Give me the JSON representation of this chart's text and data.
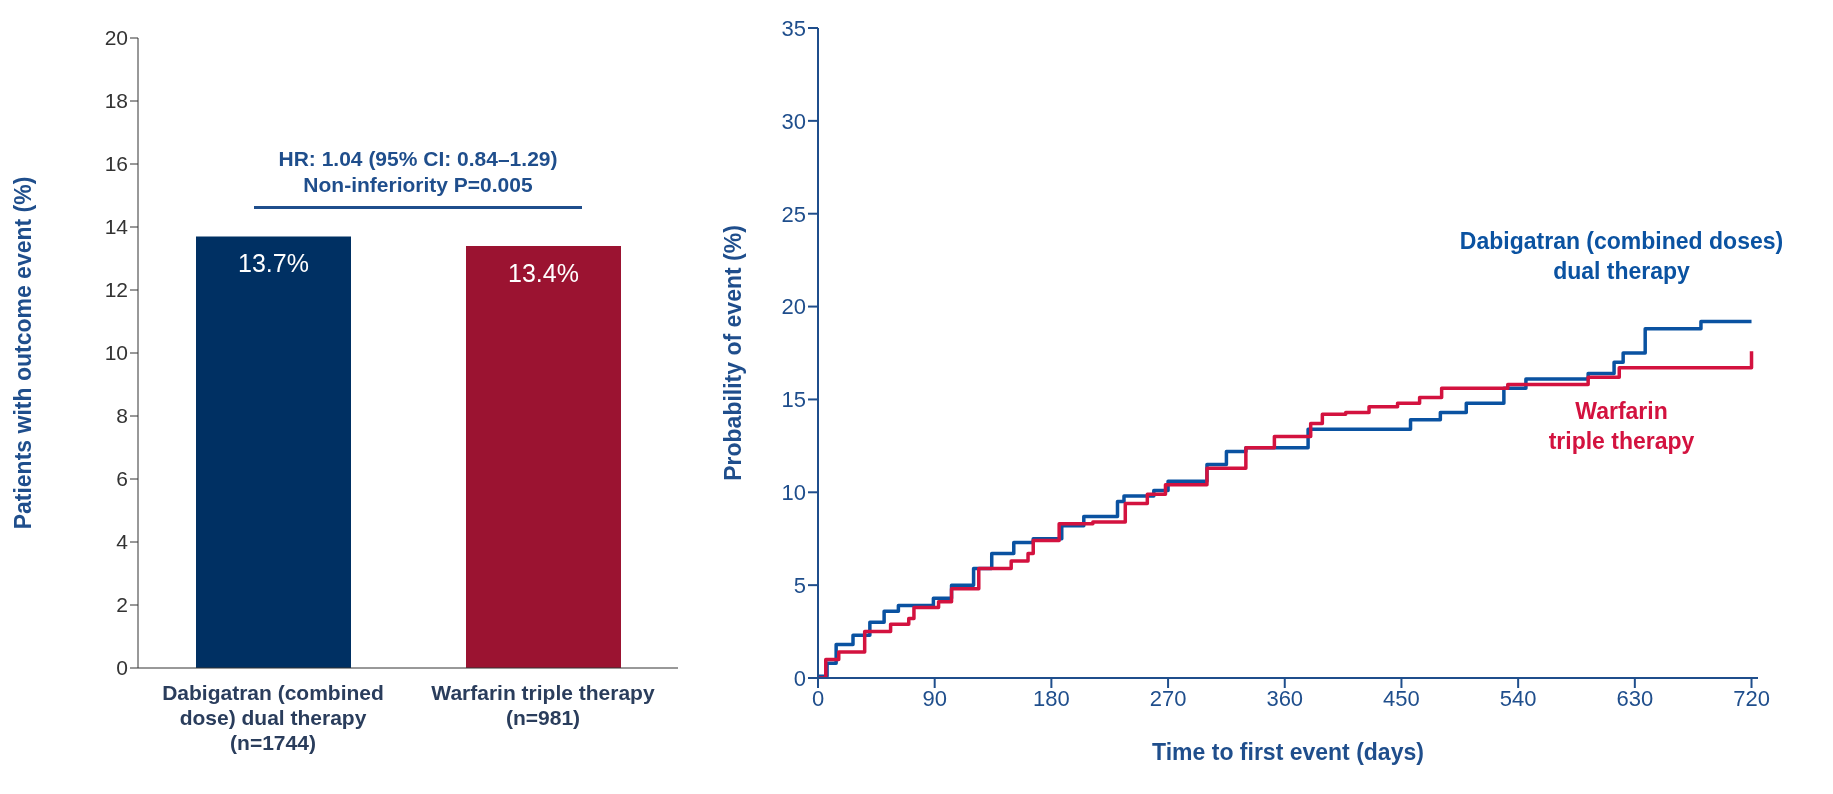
{
  "chart_data": [
    {
      "type": "bar",
      "categories": [
        "Dabigatran (combined dose) dual therapy (n=1744)",
        "Warfarin triple therapy (n=981)"
      ],
      "values": [
        13.7,
        13.4
      ],
      "colors": [
        "#003063",
        "#9b1331"
      ],
      "value_labels": [
        "13.7%",
        "13.4%"
      ],
      "ylabel": "Patients with outcome event (%)",
      "ylim": [
        0,
        20
      ],
      "yticks": [
        0,
        2,
        4,
        6,
        8,
        10,
        12,
        14,
        16,
        18,
        20
      ],
      "annotations": [
        "HR: 1.04 (95% CI: 0.84–1.29)\nNon-inferiority P=0.005"
      ],
      "grid": false,
      "legend": false
    },
    {
      "type": "step",
      "xlabel": "Time to first event (days)",
      "ylabel": "Probability of event (%)",
      "xlim": [
        0,
        725
      ],
      "xticks": [
        0,
        90,
        180,
        270,
        360,
        450,
        540,
        630,
        720
      ],
      "ylim": [
        0,
        35
      ],
      "yticks": [
        0,
        5,
        10,
        15,
        20,
        25,
        30,
        35
      ],
      "grid": false,
      "legend": false,
      "marker": "none",
      "line_style": "solid",
      "series": [
        {
          "name": "Dabigatran (combined doses)\ndual therapy",
          "color": "#0a52a1",
          "x": [
            0,
            7,
            14,
            27,
            40,
            51,
            62,
            89,
            103,
            120,
            134,
            151,
            166,
            188,
            205,
            231,
            236,
            259,
            270,
            300,
            315,
            330,
            378,
            444,
            457,
            480,
            500,
            529,
            546,
            594,
            614,
            621,
            638,
            681,
            720
          ],
          "values": [
            0.1,
            0.8,
            1.8,
            2.3,
            3.0,
            3.6,
            3.9,
            4.3,
            5.0,
            5.9,
            6.7,
            7.3,
            7.5,
            8.2,
            8.7,
            9.5,
            9.8,
            10.1,
            10.6,
            11.5,
            12.2,
            12.4,
            13.4,
            13.4,
            13.9,
            14.3,
            14.8,
            15.6,
            16.1,
            16.4,
            17.0,
            17.5,
            18.8,
            19.2,
            19.2
          ]
        },
        {
          "name": "Warfarin\ntriple therapy",
          "color": "#d3123f",
          "x": [
            0,
            6,
            16,
            36,
            56,
            70,
            74,
            93,
            103,
            124,
            149,
            162,
            166,
            186,
            212,
            237,
            254,
            268,
            300,
            330,
            352,
            380,
            389,
            407,
            425,
            447,
            464,
            481,
            532,
            594,
            618,
            720,
            720
          ],
          "values": [
            0,
            1.0,
            1.4,
            2.5,
            2.9,
            3.2,
            3.8,
            4.1,
            4.8,
            5.9,
            6.3,
            6.7,
            7.4,
            8.3,
            8.4,
            9.4,
            9.9,
            10.4,
            11.3,
            12.4,
            13.0,
            13.7,
            14.2,
            14.3,
            14.6,
            14.8,
            15.1,
            15.6,
            15.8,
            16.2,
            16.7,
            16.7,
            17.6
          ]
        }
      ]
    }
  ]
}
